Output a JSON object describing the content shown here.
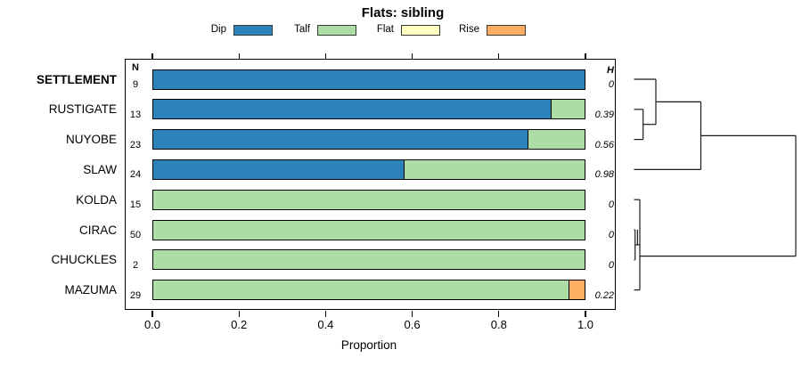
{
  "title": "Flats: sibling",
  "legend": {
    "items": [
      {
        "label": "Dip",
        "color": "#2B83BA"
      },
      {
        "label": "Talf",
        "color": "#ABDDA4"
      },
      {
        "label": "Flat",
        "color": "#FFFFBF"
      },
      {
        "label": "Rise",
        "color": "#FDAE61"
      }
    ]
  },
  "table": {
    "n_header": "N",
    "h_header": "H"
  },
  "axis": {
    "xlabel": "Proportion",
    "ticks": [
      "0.0",
      "0.2",
      "0.4",
      "0.6",
      "0.8",
      "1.0"
    ]
  },
  "chart_data": {
    "type": "bar",
    "orientation": "horizontal",
    "stacked": true,
    "title": "Flats: sibling",
    "xlabel": "Proportion",
    "xlim": [
      0,
      1
    ],
    "legend_position": "top",
    "grid": false,
    "categories": [
      "SETTLEMENT",
      "RUSTIGATE",
      "NUYOBE",
      "SLAW",
      "KOLDA",
      "CIRAC",
      "CHUCKLES",
      "MAZUMA"
    ],
    "series_names": [
      "Dip",
      "Talf",
      "Flat",
      "Rise"
    ],
    "colors": {
      "Dip": "#2B83BA",
      "Talf": "#ABDDA4",
      "Flat": "#FFFFBF",
      "Rise": "#FDAE61"
    },
    "rows": [
      {
        "label": "SETTLEMENT",
        "bold": true,
        "n": 9,
        "h": "0",
        "segments": [
          {
            "name": "Dip",
            "value": 1.0
          }
        ]
      },
      {
        "label": "RUSTIGATE",
        "bold": false,
        "n": 13,
        "h": "0.39",
        "segments": [
          {
            "name": "Dip",
            "value": 0.923
          },
          {
            "name": "Talf",
            "value": 0.077
          }
        ]
      },
      {
        "label": "NUYOBE",
        "bold": false,
        "n": 23,
        "h": "0.56",
        "segments": [
          {
            "name": "Dip",
            "value": 0.87
          },
          {
            "name": "Talf",
            "value": 0.13
          }
        ]
      },
      {
        "label": "SLAW",
        "bold": false,
        "n": 24,
        "h": "0.98",
        "segments": [
          {
            "name": "Dip",
            "value": 0.583
          },
          {
            "name": "Talf",
            "value": 0.417
          }
        ]
      },
      {
        "label": "KOLDA",
        "bold": false,
        "n": 15,
        "h": "0",
        "segments": [
          {
            "name": "Talf",
            "value": 1.0
          }
        ]
      },
      {
        "label": "CIRAC",
        "bold": false,
        "n": 50,
        "h": "0",
        "segments": [
          {
            "name": "Talf",
            "value": 1.0
          }
        ]
      },
      {
        "label": "CHUCKLES",
        "bold": false,
        "n": 2,
        "h": "0",
        "segments": [
          {
            "name": "Talf",
            "value": 1.0
          }
        ]
      },
      {
        "label": "MAZUMA",
        "bold": false,
        "n": 29,
        "h": "0.22",
        "segments": [
          {
            "name": "Talf",
            "value": 0.9655
          },
          {
            "name": "Rise",
            "value": 0.0345
          }
        ]
      }
    ]
  },
  "dendrogram": {
    "description": "hierarchical clustering of rows, heights increase rightward",
    "segments": [
      [
        711.5,
        89.0,
        736.0,
        89.0
      ],
      [
        711.5,
        122.8,
        721.7,
        122.8
      ],
      [
        711.5,
        156.6,
        721.7,
        156.6
      ],
      [
        721.7,
        122.8,
        721.7,
        156.6
      ],
      [
        721.7,
        139.7,
        736.0,
        139.7
      ],
      [
        736.0,
        89.0,
        736.0,
        139.7
      ],
      [
        736.0,
        114.4,
        786.5,
        114.4
      ],
      [
        711.5,
        190.4,
        786.5,
        190.4
      ],
      [
        786.5,
        114.4,
        786.5,
        190.4
      ],
      [
        786.5,
        152.4,
        893.0,
        152.4
      ],
      [
        711.5,
        224.2,
        718.0,
        224.2
      ],
      [
        711.5,
        325.6,
        718.0,
        325.6
      ],
      [
        718.0,
        224.2,
        718.0,
        325.6
      ],
      [
        711.5,
        258.0,
        712.7,
        258.0
      ],
      [
        711.5,
        291.8,
        712.7,
        291.8
      ],
      [
        712.7,
        258.0,
        712.7,
        291.8
      ],
      [
        715.4,
        258.0,
        715.4,
        274.9
      ],
      [
        712.7,
        274.9,
        718.0,
        274.9
      ],
      [
        718.0,
        287.6,
        893.0,
        287.6
      ],
      [
        893.0,
        152.4,
        893.0,
        287.6
      ]
    ]
  }
}
